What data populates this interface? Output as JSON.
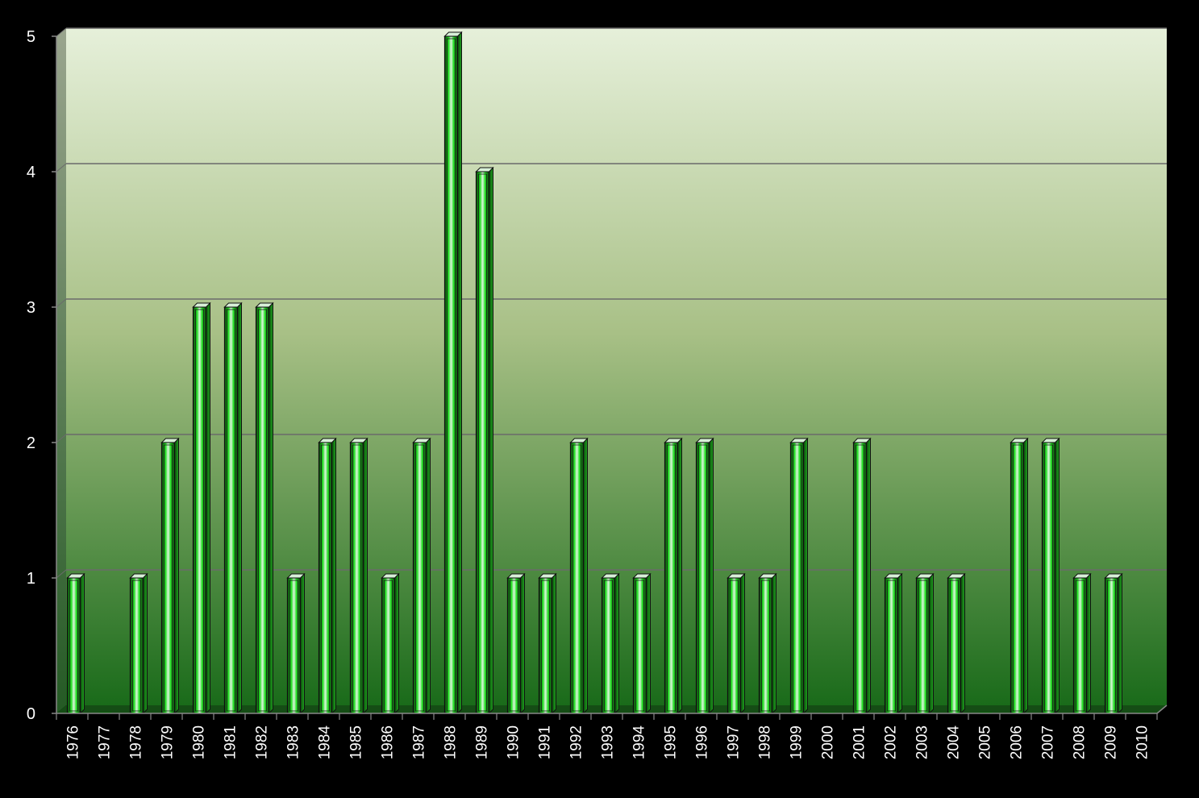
{
  "chart_data": {
    "type": "bar",
    "title": "",
    "xlabel": "",
    "ylabel": "",
    "categories": [
      "1976",
      "1977",
      "1978",
      "1979",
      "1980",
      "1981",
      "1982",
      "1983",
      "1984",
      "1985",
      "1986",
      "1987",
      "1988",
      "1989",
      "1990",
      "1991",
      "1992",
      "1993",
      "1994",
      "1995",
      "1996",
      "1997",
      "1998",
      "1999",
      "2000",
      "2001",
      "2002",
      "2003",
      "2004",
      "2005",
      "2006",
      "2007",
      "2008",
      "2009",
      "2010"
    ],
    "values": [
      1,
      0,
      1,
      2,
      3,
      3,
      3,
      1,
      2,
      2,
      1,
      2,
      5,
      4,
      1,
      1,
      2,
      1,
      1,
      2,
      2,
      1,
      1,
      2,
      0,
      2,
      1,
      1,
      1,
      0,
      2,
      2,
      1,
      1,
      0
    ],
    "ylim": [
      0,
      5
    ],
    "yticks": [
      "0",
      "1",
      "2",
      "3",
      "4",
      "5"
    ],
    "grid": true,
    "legend": "none",
    "colors": {
      "background": "#000000",
      "plot_top": "#e6f0da",
      "plot_bottom": "#1a6b1a",
      "bar_glow": "#22dd22",
      "bar_outline": "#111111",
      "gridline": "#666666",
      "text": "#ffffff"
    }
  }
}
